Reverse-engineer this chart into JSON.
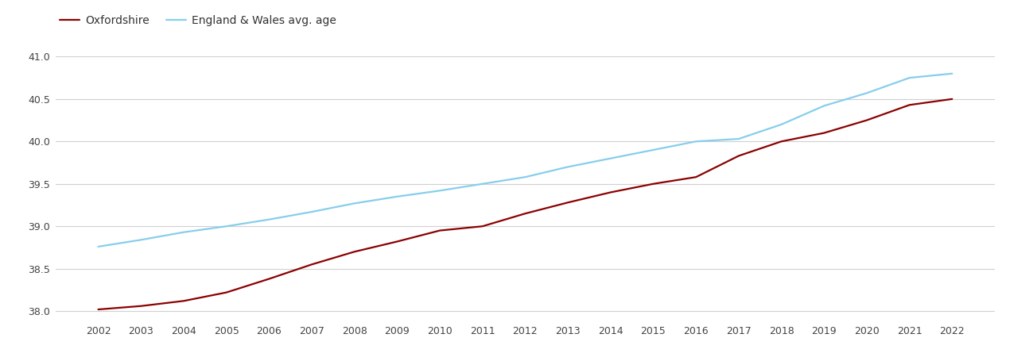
{
  "years": [
    2002,
    2003,
    2004,
    2005,
    2006,
    2007,
    2008,
    2009,
    2010,
    2011,
    2012,
    2013,
    2014,
    2015,
    2016,
    2017,
    2018,
    2019,
    2020,
    2021,
    2022
  ],
  "oxfordshire": [
    38.02,
    38.06,
    38.12,
    38.22,
    38.38,
    38.55,
    38.7,
    38.82,
    38.95,
    39.0,
    39.15,
    39.28,
    39.4,
    39.5,
    39.58,
    39.83,
    40.0,
    40.1,
    40.25,
    40.43,
    40.5
  ],
  "england_wales": [
    38.76,
    38.84,
    38.93,
    39.0,
    39.08,
    39.17,
    39.27,
    39.35,
    39.42,
    39.5,
    39.58,
    39.7,
    39.8,
    39.9,
    40.0,
    40.03,
    40.2,
    40.42,
    40.57,
    40.75,
    40.8
  ],
  "oxfordshire_color": "#8B0000",
  "england_wales_color": "#87CEEB",
  "background_color": "#ffffff",
  "grid_color": "#d0d0d0",
  "ylim": [
    37.88,
    41.12
  ],
  "yticks": [
    38.0,
    38.5,
    39.0,
    39.5,
    40.0,
    40.5,
    41.0
  ],
  "legend_labels": [
    "Oxfordshire",
    "England & Wales avg. age"
  ],
  "line_width": 1.6
}
